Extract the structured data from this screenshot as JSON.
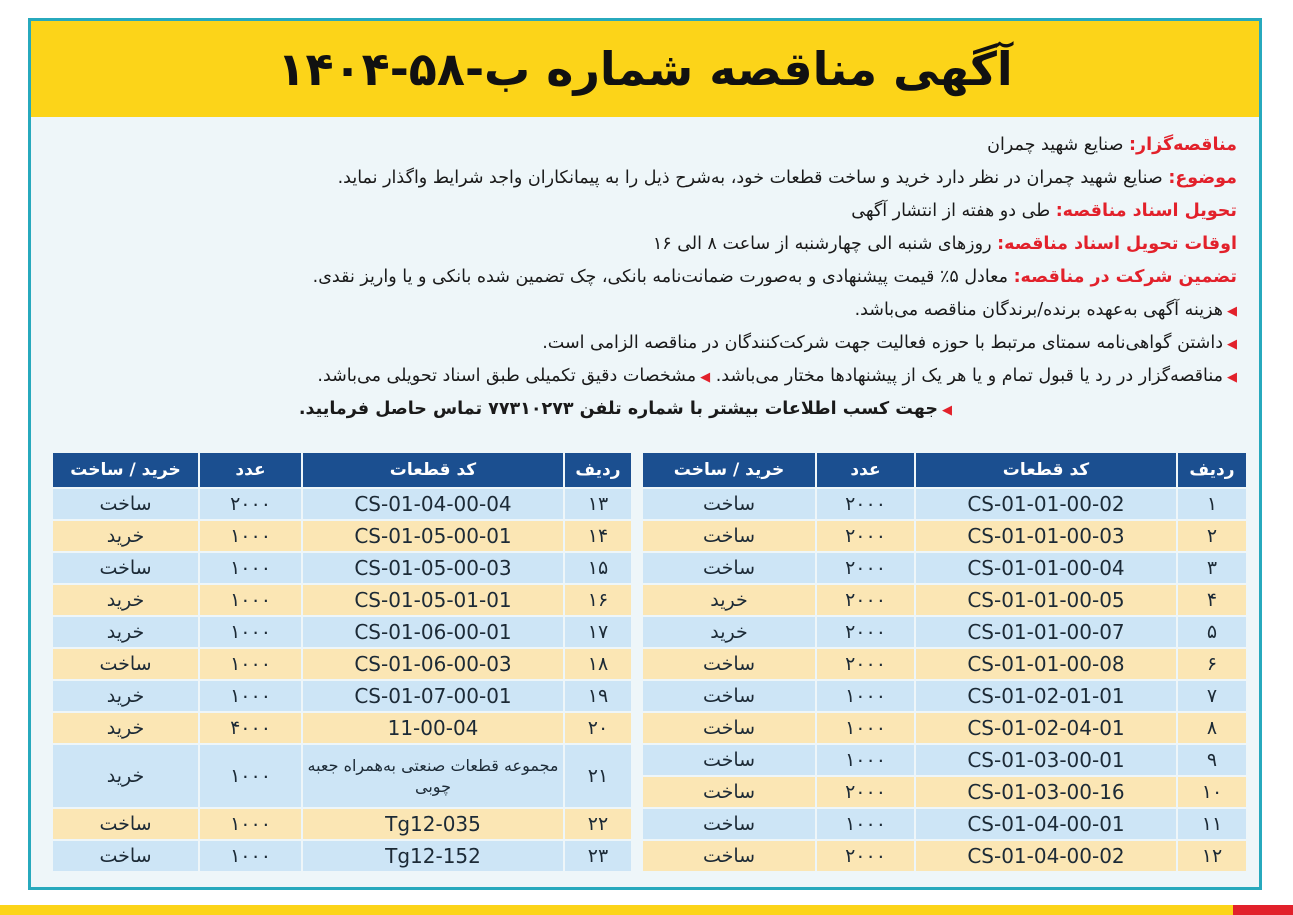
{
  "title": "آگهی مناقصه شماره ب-۵۸-۱۴۰۴",
  "info": [
    {
      "label": "مناقصه‌گزار:",
      "text": " صنایع شهید چمران"
    },
    {
      "label": "موضوع:",
      "text": " صنایع شهید چمران در نظر دارد خرید و ساخت قطعات خود، به‌شرح ذیل را به پیمانکاران واجد شرایط واگذار نماید."
    },
    {
      "label": "تحویل اسناد مناقصه:",
      "text": " طی دو هفته از انتشار آگهی"
    },
    {
      "label": "اوقات تحویل اسناد مناقصه:",
      "text": " روزهای شنبه الی چهارشنبه از ساعت ۸ الی ۱۶"
    },
    {
      "label": "تضمین شرکت در مناقصه:",
      "text": " معادل ۵٪ قیمت پیشنهادی و به‌صورت ضمانت‌نامه بانکی، چک تضمین شده بانکی و یا واریز نقدی."
    }
  ],
  "bullets": [
    "هزینه آگهی به‌عهده برنده/برندگان مناقصه می‌باشد.",
    "داشتن گواهی‌نامه سمتای مرتبط با حوزه فعالیت جهت شرکت‌کنندگان در مناقصه الزامی است.",
    "مناقصه‌گزار در رد یا قبول تمام و یا هر یک از پیشنهادها مختار می‌باشد.",
    "مشخصات دقیق تکمیلی طبق اسناد تحویلی می‌باشد."
  ],
  "contact": "جهت کسب اطلاعات بیشتر با شماره تلفن ۷۷۳۱۰۲۷۳ تماس حاصل فرمایید.",
  "table": {
    "headers": [
      "ردیف",
      "کد قطعات",
      "عدد",
      "خرید / ساخت"
    ],
    "right_rows": [
      [
        "۱",
        "CS-01-01-00-02",
        "۲۰۰۰",
        "ساخت"
      ],
      [
        "۲",
        "CS-01-01-00-03",
        "۲۰۰۰",
        "ساخت"
      ],
      [
        "۳",
        "CS-01-01-00-04",
        "۲۰۰۰",
        "ساخت"
      ],
      [
        "۴",
        "CS-01-01-00-05",
        "۲۰۰۰",
        "خرید"
      ],
      [
        "۵",
        "CS-01-01-00-07",
        "۲۰۰۰",
        "خرید"
      ],
      [
        "۶",
        "CS-01-01-00-08",
        "۲۰۰۰",
        "ساخت"
      ],
      [
        "۷",
        "CS-01-02-01-01",
        "۱۰۰۰",
        "ساخت"
      ],
      [
        "۸",
        "CS-01-02-04-01",
        "۱۰۰۰",
        "ساخت"
      ],
      [
        "۹",
        "CS-01-03-00-01",
        "۱۰۰۰",
        "ساخت"
      ],
      [
        "۱۰",
        "CS-01-03-00-16",
        "۲۰۰۰",
        "ساخت"
      ],
      [
        "۱۱",
        "CS-01-04-00-01",
        "۱۰۰۰",
        "ساخت"
      ],
      [
        "۱۲",
        "CS-01-04-00-02",
        "۲۰۰۰",
        "ساخت"
      ]
    ],
    "left_rows": [
      [
        "۱۳",
        "CS-01-04-00-04",
        "۲۰۰۰",
        "ساخت"
      ],
      [
        "۱۴",
        "CS-01-05-00-01",
        "۱۰۰۰",
        "خرید"
      ],
      [
        "۱۵",
        "CS-01-05-00-03",
        "۱۰۰۰",
        "ساخت"
      ],
      [
        "۱۶",
        "CS-01-05-01-01",
        "۱۰۰۰",
        "خرید"
      ],
      [
        "۱۷",
        "CS-01-06-00-01",
        "۱۰۰۰",
        "خرید"
      ],
      [
        "۱۸",
        "CS-01-06-00-03",
        "۱۰۰۰",
        "ساخت"
      ],
      [
        "۱۹",
        "CS-01-07-00-01",
        "۱۰۰۰",
        "خرید"
      ],
      [
        "۲۰",
        "11-00-04",
        "۴۰۰۰",
        "خرید"
      ],
      [
        "۲۱",
        "مجموعه قطعات صنعتی به‌همراه جعبه چوبی",
        "۱۰۰۰",
        "خرید"
      ],
      [
        "۲۲",
        "Tg12-035",
        "۱۰۰۰",
        "ساخت"
      ],
      [
        "۲۳",
        "Tg12-152",
        "۱۰۰۰",
        "ساخت"
      ]
    ]
  },
  "colors": {
    "accent_red": "#e2212b",
    "header_yellow": "#fcd419",
    "table_header_blue": "#1b4f90",
    "frame_teal": "#27a9bd"
  }
}
